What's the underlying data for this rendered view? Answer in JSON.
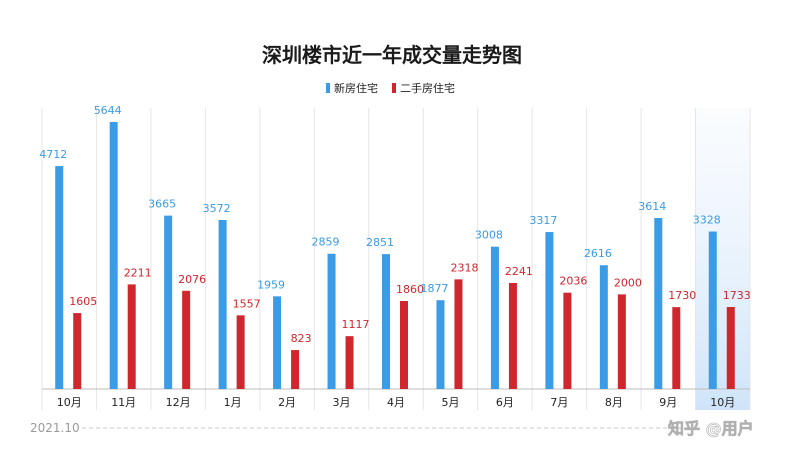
{
  "chart_data": {
    "type": "bar",
    "title": "深圳楼市近一年成交量走势图",
    "categories": [
      "10月",
      "11月",
      "12月",
      "1月",
      "2月",
      "3月",
      "4月",
      "5月",
      "6月",
      "7月",
      "8月",
      "9月",
      "10月"
    ],
    "series": [
      {
        "name": "新房住宅",
        "color": "#3a9be6",
        "values": [
          4712,
          5644,
          3665,
          3572,
          1959,
          2859,
          2851,
          1877,
          3008,
          3317,
          2616,
          3614,
          3328
        ]
      },
      {
        "name": "二手房住宅",
        "color": "#d0262d",
        "values": [
          1605,
          2211,
          2076,
          1557,
          823,
          1117,
          1860,
          2318,
          2241,
          2036,
          2000,
          1730,
          1733
        ]
      }
    ],
    "ylim": [
      0,
      6000
    ],
    "grid": "vertical separators",
    "legend": "top-center",
    "highlight_index": 12
  },
  "footer": {
    "start_label": "2021.10",
    "watermark": "知乎 @用户"
  }
}
